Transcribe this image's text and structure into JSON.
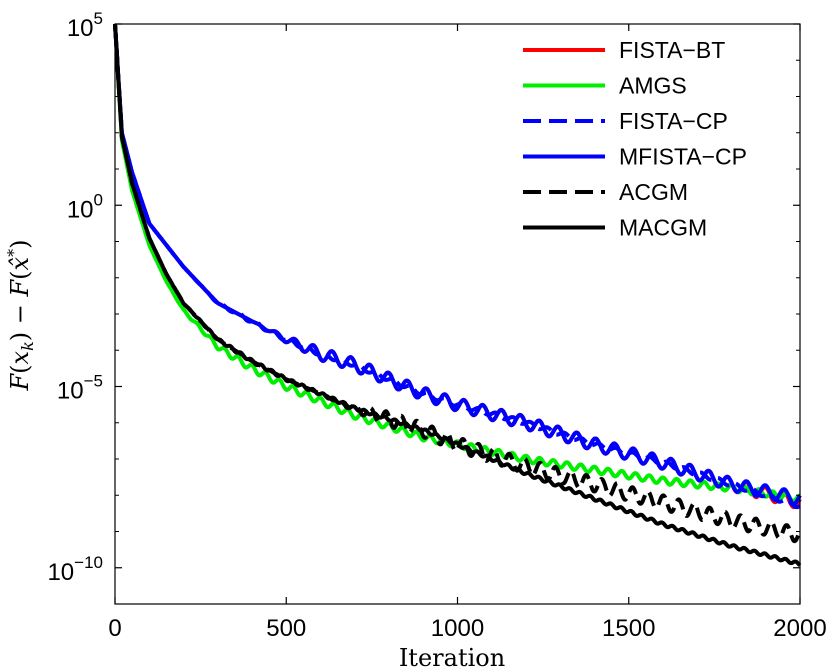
{
  "chart_data": {
    "type": "line",
    "title": "",
    "xlabel": "Iteration",
    "ylabel": "F(x_k) − F(x̂*)",
    "ylabel_parts": {
      "f1": "F",
      "lp1": "(",
      "x1": "x",
      "sub1": "k",
      "rp1": ")",
      "minus": " − ",
      "f2": "F",
      "lp2": "(",
      "x2": "x̂",
      "sup2": "*",
      "rp2": ")"
    },
    "xlim": [
      0,
      2000
    ],
    "ylim_log10": [
      -11,
      5
    ],
    "y_scale": "log",
    "grid": false,
    "legend_position": "top-right",
    "x_ticks": [
      {
        "value": 0,
        "label": "0"
      },
      {
        "value": 500,
        "label": "500"
      },
      {
        "value": 1000,
        "label": "1000"
      },
      {
        "value": 1500,
        "label": "1500"
      },
      {
        "value": 2000,
        "label": "2000"
      }
    ],
    "y_ticks": [
      {
        "exp": 5,
        "base": "10",
        "power": "5"
      },
      {
        "exp": 0,
        "base": "10",
        "power": "0"
      },
      {
        "exp": -5,
        "base": "10",
        "power": "−5"
      },
      {
        "exp": -10,
        "base": "10",
        "power": "−10"
      }
    ],
    "series": [
      {
        "name": "FISTA−BT",
        "color": "#ff0000",
        "dash": "solid",
        "x": [
          0,
          20,
          50,
          100,
          150,
          200,
          300,
          400,
          500,
          600,
          700,
          800,
          900,
          1000,
          1200,
          1400,
          1600,
          1800,
          2000
        ],
        "y_log10": [
          5.0,
          2.0,
          0.9,
          -0.5,
          -1.1,
          -1.7,
          -2.7,
          -3.2,
          -3.7,
          -4.1,
          -4.4,
          -4.8,
          -5.2,
          -5.5,
          -6.0,
          -6.6,
          -7.1,
          -7.7,
          -8.2
        ],
        "oscillation": 0.35,
        "osc_period": 55,
        "osc_start": 400
      },
      {
        "name": "AMGS",
        "color": "#00ee00",
        "dash": "solid",
        "x": [
          0,
          20,
          50,
          100,
          150,
          200,
          300,
          400,
          500,
          600,
          700,
          800,
          900,
          1000,
          1200,
          1400,
          1600,
          1800,
          2000
        ],
        "y_log10": [
          5.0,
          1.8,
          0.4,
          -1.1,
          -2.1,
          -2.9,
          -3.9,
          -4.5,
          -5.0,
          -5.4,
          -5.8,
          -6.1,
          -6.4,
          -6.6,
          -7.0,
          -7.3,
          -7.6,
          -7.8,
          -8.1
        ],
        "oscillation": 0.18,
        "osc_period": 40,
        "osc_start": 150
      },
      {
        "name": "FISTA−CP",
        "color": "#0000ff",
        "dash": "dashed",
        "x": [
          0,
          20,
          50,
          100,
          150,
          200,
          300,
          400,
          500,
          600,
          700,
          800,
          900,
          1000,
          1200,
          1400,
          1600,
          1800,
          2000
        ],
        "y_log10": [
          5.0,
          2.0,
          0.9,
          -0.5,
          -1.1,
          -1.7,
          -2.7,
          -3.2,
          -3.7,
          -4.1,
          -4.4,
          -4.8,
          -5.2,
          -5.5,
          -6.0,
          -6.6,
          -7.1,
          -7.7,
          -8.3
        ],
        "oscillation": 0.12,
        "osc_period": 50,
        "osc_start": 200
      },
      {
        "name": "MFISTA−CP",
        "color": "#0000ff",
        "dash": "solid",
        "x": [
          0,
          20,
          50,
          100,
          150,
          200,
          300,
          400,
          500,
          600,
          700,
          800,
          900,
          1000,
          1200,
          1400,
          1600,
          1800,
          2000
        ],
        "y_log10": [
          5.0,
          2.0,
          0.9,
          -0.5,
          -1.1,
          -1.7,
          -2.7,
          -3.2,
          -3.7,
          -4.1,
          -4.4,
          -4.8,
          -5.2,
          -5.5,
          -6.0,
          -6.6,
          -7.1,
          -7.7,
          -8.1
        ],
        "oscillation": 0.35,
        "osc_period": 55,
        "osc_start": 400
      },
      {
        "name": "ACGM",
        "color": "#000000",
        "dash": "dashed",
        "x": [
          0,
          20,
          50,
          100,
          150,
          200,
          300,
          400,
          500,
          600,
          700,
          800,
          900,
          1000,
          1200,
          1400,
          1600,
          1800,
          2000
        ],
        "y_log10": [
          5.0,
          1.9,
          0.6,
          -0.9,
          -1.9,
          -2.7,
          -3.7,
          -4.3,
          -4.8,
          -5.2,
          -5.6,
          -5.9,
          -6.2,
          -6.6,
          -7.2,
          -7.7,
          -8.2,
          -8.7,
          -9.1
        ],
        "oscillation": 0.4,
        "osc_period": 45,
        "osc_start": 600
      },
      {
        "name": "MACGM",
        "color": "#000000",
        "dash": "solid",
        "x": [
          0,
          20,
          50,
          100,
          150,
          200,
          300,
          400,
          500,
          600,
          700,
          800,
          900,
          1000,
          1200,
          1400,
          1600,
          1800,
          2000
        ],
        "y_log10": [
          5.0,
          1.9,
          0.6,
          -0.9,
          -1.9,
          -2.7,
          -3.7,
          -4.3,
          -4.8,
          -5.2,
          -5.6,
          -5.9,
          -6.2,
          -6.6,
          -7.4,
          -8.1,
          -8.8,
          -9.4,
          -9.9
        ],
        "oscillation": 0.08,
        "osc_period": 30,
        "osc_start": 150
      }
    ]
  }
}
